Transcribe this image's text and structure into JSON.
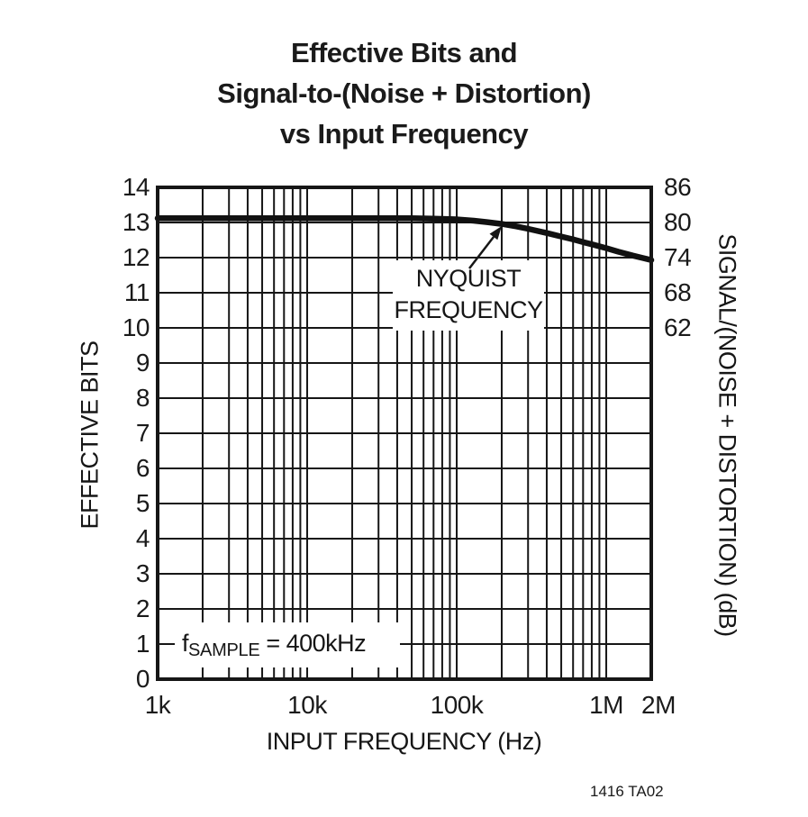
{
  "title": {
    "line1": "Effective Bits and",
    "line2": "Signal-to-(Noise + Distortion)",
    "line3": "vs Input Frequency"
  },
  "figure_caption": "1416 TA02",
  "annotations": {
    "nyquist": {
      "line1": "NYQUIST",
      "line2": "FREQUENCY"
    },
    "fsample": {
      "prefix": "f",
      "subscript": "SAMPLE",
      "suffix": " = 400kHz"
    }
  },
  "axes": {
    "x": {
      "label": "INPUT FREQUENCY (Hz)",
      "scale": "log",
      "min_hz": 1000,
      "max_hz": 2000000,
      "ticks": [
        {
          "hz": 1000,
          "label": "1k",
          "dx": 0
        },
        {
          "hz": 10000,
          "label": "10k",
          "dx": 0
        },
        {
          "hz": 100000,
          "label": "100k",
          "dx": 0
        },
        {
          "hz": 1000000,
          "label": "1M",
          "dx": 0
        },
        {
          "hz": 2000000,
          "label": "2M",
          "dx": 8
        }
      ]
    },
    "y_left": {
      "label": "EFFECTIVE BITS",
      "min": 0,
      "max": 14,
      "ticks": [
        {
          "bits": 14,
          "label": "14"
        },
        {
          "bits": 13,
          "label": "13"
        },
        {
          "bits": 12,
          "label": "12"
        },
        {
          "bits": 11,
          "label": "11"
        },
        {
          "bits": 10,
          "label": "10"
        },
        {
          "bits": 9,
          "label": "9"
        },
        {
          "bits": 8,
          "label": "8"
        },
        {
          "bits": 7,
          "label": "7"
        },
        {
          "bits": 6,
          "label": "6"
        },
        {
          "bits": 5,
          "label": "5"
        },
        {
          "bits": 4,
          "label": "4"
        },
        {
          "bits": 3,
          "label": "3"
        },
        {
          "bits": 2,
          "label": "2"
        },
        {
          "bits": 1,
          "label": "1"
        },
        {
          "bits": 0,
          "label": "0"
        }
      ]
    },
    "y_right": {
      "label": "SIGNAL/(NOISE + DISTORTION) (dB)",
      "ticks": [
        {
          "bits": 14,
          "label": "86"
        },
        {
          "bits": 13,
          "label": "80"
        },
        {
          "bits": 12,
          "label": "74"
        },
        {
          "bits": 11,
          "label": "68"
        },
        {
          "bits": 10,
          "label": "62"
        }
      ]
    }
  },
  "chart_data": {
    "type": "line",
    "title": "Effective Bits and Signal-to-(Noise + Distortion) vs Input Frequency",
    "xlabel": "INPUT FREQUENCY (Hz)",
    "ylabel_left": "EFFECTIVE BITS",
    "ylabel_right": "SIGNAL/(NOISE + DISTORTION) (dB)",
    "x_scale": "log",
    "x_range_hz": [
      1000,
      2000000
    ],
    "y_left_range_bits": [
      0,
      14
    ],
    "y_right_ticks_db": [
      86,
      80,
      74,
      68,
      62
    ],
    "grid": true,
    "sample_rate": "fSAMPLE = 400kHz",
    "nyquist_annotation_target_khz": 200,
    "series": [
      {
        "name": "Effective bits vs input frequency",
        "x_khz": [
          1,
          2,
          3,
          5,
          7,
          10,
          15,
          20,
          30,
          50,
          70,
          100,
          130,
          160,
          200,
          250,
          300,
          400,
          500,
          600,
          700,
          800,
          1000,
          1200,
          1500,
          1750,
          2000
        ],
        "effective_bits": [
          13.12,
          13.12,
          13.12,
          13.12,
          13.12,
          13.12,
          13.12,
          13.12,
          13.12,
          13.12,
          13.11,
          13.09,
          13.05,
          13.01,
          12.96,
          12.89,
          12.82,
          12.7,
          12.6,
          12.52,
          12.44,
          12.38,
          12.27,
          12.17,
          12.06,
          11.99,
          11.93
        ]
      }
    ]
  },
  "colors": {
    "ink": "#161616",
    "background": "#ffffff"
  }
}
